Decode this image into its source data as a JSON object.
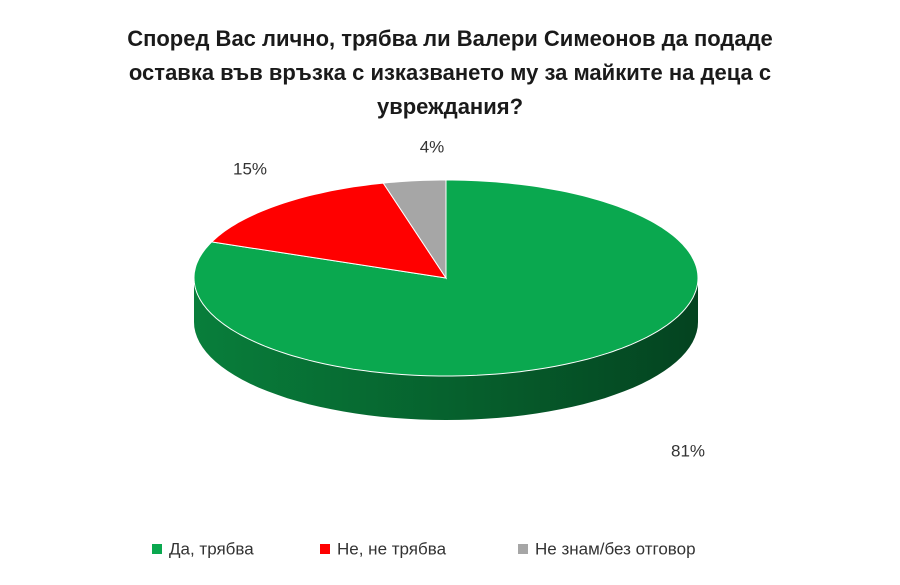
{
  "chart_data": {
    "type": "pie",
    "title": "Според Вас лично, трябва ли Валери Симеонов да подаде оставка във връзка с изказването му за майките на деца с увреждания?",
    "categories": [
      "Да, трябва",
      "Не, не трябва",
      "Не знам/без отговор"
    ],
    "values": [
      81,
      15,
      4
    ],
    "value_labels": [
      "81%",
      "15%",
      "4%"
    ],
    "colors": [
      "#0aa84f",
      "#ff0000",
      "#a6a6a6"
    ],
    "legend": "bottom"
  }
}
